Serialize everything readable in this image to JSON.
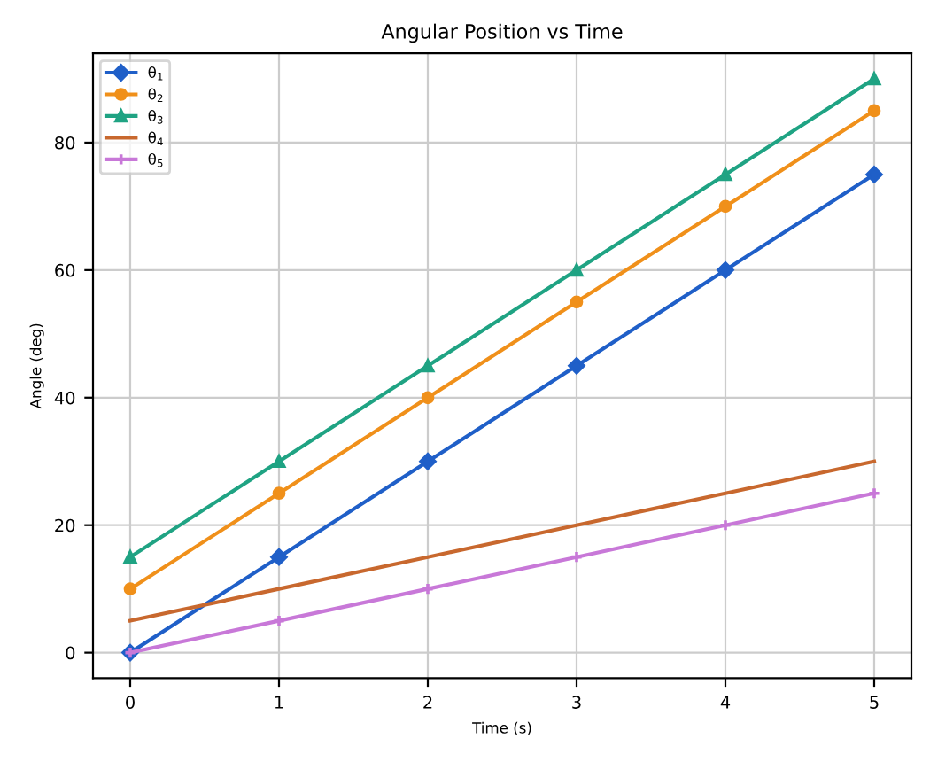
{
  "chart_data": {
    "type": "line",
    "title": "Angular Position vs Time",
    "xlabel": "Time (s)",
    "ylabel": "Angle (deg)",
    "x": [
      0,
      1,
      2,
      3,
      4,
      5
    ],
    "series": [
      {
        "name": "θ$_{1}$",
        "color": "#1f5fc8",
        "marker": "diamond",
        "values": [
          0,
          15,
          30,
          45,
          60,
          75
        ]
      },
      {
        "name": "θ$_{2}$",
        "color": "#f0901a",
        "marker": "circle",
        "values": [
          10,
          25,
          40,
          55,
          70,
          85
        ]
      },
      {
        "name": "θ$_{3}$",
        "color": "#1fa383",
        "marker": "triangle",
        "values": [
          15,
          30,
          45,
          60,
          75,
          90
        ]
      },
      {
        "name": "θ$_{4}$",
        "color": "#c8682e",
        "marker": "none",
        "values": [
          5,
          10,
          15,
          20,
          25,
          30
        ]
      },
      {
        "name": "θ$_{5}$",
        "color": "#c878d8",
        "marker": "cross",
        "values": [
          0,
          5,
          10,
          15,
          20,
          25
        ]
      }
    ],
    "xlim": [
      -0.25,
      5.25
    ],
    "ylim": [
      -4,
      94
    ],
    "xticks": [
      0,
      1,
      2,
      3,
      4,
      5
    ],
    "yticks": [
      0,
      20,
      40,
      60,
      80
    ],
    "grid": true,
    "legend": "top left",
    "line_style": "solid"
  }
}
